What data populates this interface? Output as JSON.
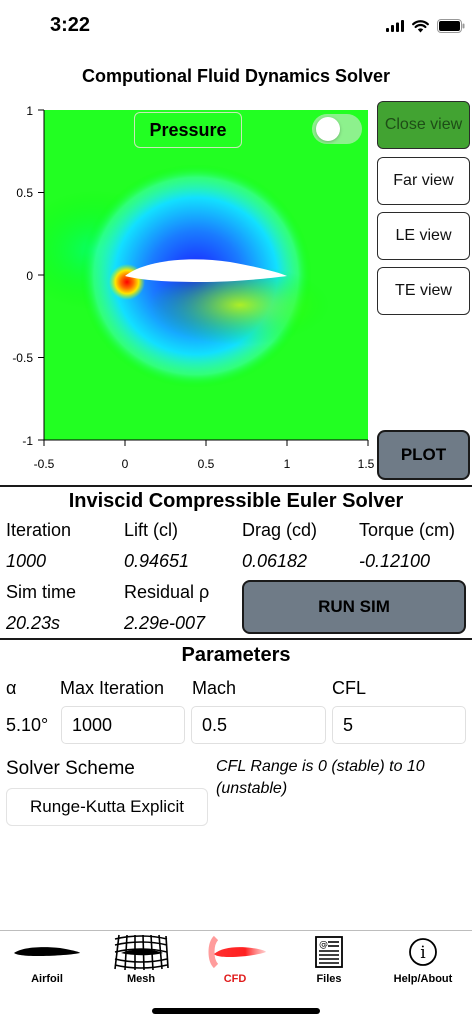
{
  "status_bar": {
    "time": "3:22"
  },
  "app": {
    "title": "Computional Fluid Dynamics Solver"
  },
  "plot": {
    "field_label": "Pressure",
    "x_ticks": [
      "-0.5",
      "0",
      "0.5",
      "1",
      "1.5"
    ],
    "y_ticks": [
      "1",
      "0.5",
      "0",
      "-0.5",
      "-1"
    ],
    "x_range": [
      -0.5,
      1.5
    ],
    "y_range": [
      -1,
      1
    ],
    "colormap": [
      "#ff0000",
      "#ffee00",
      "#00ff00",
      "#00ffff",
      "#0000ff"
    ]
  },
  "view_buttons": {
    "close": "Close view",
    "far": "Far view",
    "le": "LE view",
    "te": "TE view",
    "plot": "PLOT"
  },
  "solver": {
    "title": "Inviscid Compressible Euler Solver",
    "iteration_label": "Iteration",
    "iteration_value": "1000",
    "lift_label": "Lift (cl)",
    "lift_value": "0.94651",
    "drag_label": "Drag (cd)",
    "drag_value": "0.06182",
    "torque_label": "Torque (cm)",
    "torque_value": "-0.12100",
    "simtime_label": "Sim time",
    "simtime_value": "20.23s",
    "residual_label": "Residual ρ",
    "residual_value": "2.29e-007",
    "run_button": "RUN SIM"
  },
  "parameters": {
    "title": "Parameters",
    "alpha_label": "α",
    "alpha_value": "5.10°",
    "max_iter_label": "Max Iteration",
    "max_iter_value": "1000",
    "mach_label": "Mach",
    "mach_value": "0.5",
    "cfl_label": "CFL",
    "cfl_value": "5",
    "scheme_label": "Solver Scheme",
    "scheme_value": "Runge-Kutta Explicit",
    "cfl_note": "CFL Range is 0 (stable) to 10 (unstable)"
  },
  "tabs": [
    {
      "label": "Airfoil",
      "icon": "airfoil-icon"
    },
    {
      "label": "Mesh",
      "icon": "mesh-icon"
    },
    {
      "label": "CFD",
      "icon": "cfd-icon",
      "selected": true
    },
    {
      "label": "Files",
      "icon": "files-icon"
    },
    {
      "label": "Help/About",
      "icon": "info-icon"
    }
  ],
  "colors": {
    "active_button": "#42a332",
    "action_button": "#6f7b87",
    "selected_tab": "#e01b1b"
  }
}
